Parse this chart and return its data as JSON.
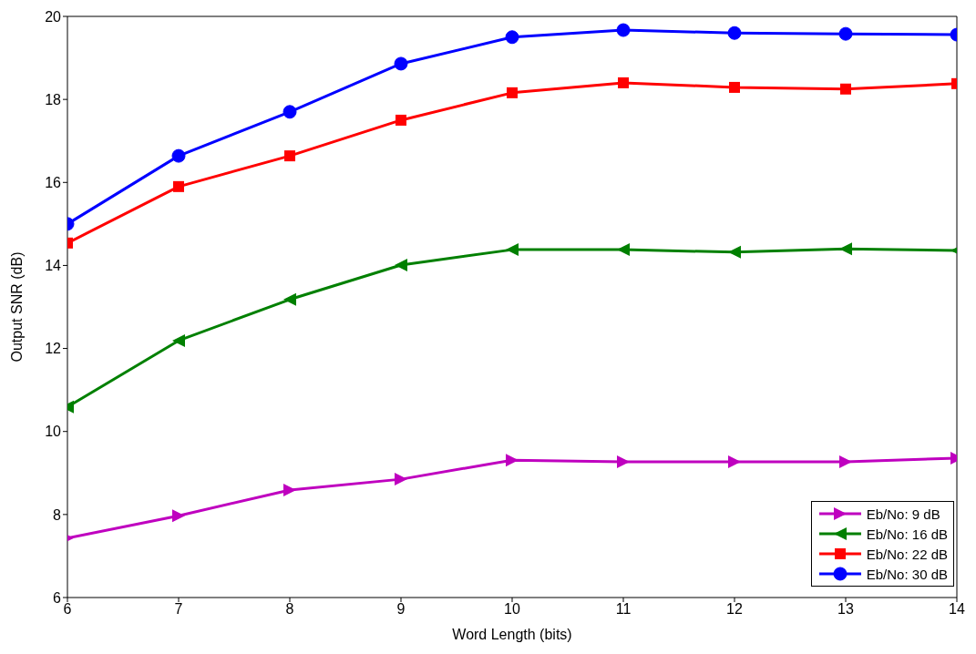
{
  "chart_data": {
    "type": "line",
    "xlabel": "Word Length (bits)",
    "ylabel": "Output SNR (dB)",
    "x": [
      6,
      7,
      8,
      9,
      10,
      11,
      12,
      13,
      14
    ],
    "xlim": [
      6,
      14
    ],
    "xticks": [
      6,
      7,
      8,
      9,
      10,
      11,
      12,
      13,
      14
    ],
    "ylim": [
      6,
      20
    ],
    "yticks": [
      6,
      8,
      10,
      12,
      14,
      16,
      18,
      20
    ],
    "grid": false,
    "legend": "bottom right",
    "line_style": "solid",
    "series": [
      {
        "name": "Eb/No: 9 dB",
        "color": "#bf00bf",
        "marker": "triangle-right",
        "values": [
          7.43,
          7.97,
          8.59,
          8.85,
          9.31,
          9.27,
          9.27,
          9.27,
          9.36
        ]
      },
      {
        "name": "Eb/No: 16 dB",
        "color": "#008000",
        "marker": "triangle-left",
        "values": [
          10.59,
          12.19,
          13.18,
          14.01,
          14.38,
          14.38,
          14.32,
          14.4,
          14.36
        ]
      },
      {
        "name": "Eb/No: 22 dB",
        "color": "#ff0000",
        "marker": "square",
        "values": [
          14.54,
          15.9,
          16.64,
          17.5,
          18.16,
          18.4,
          18.29,
          18.25,
          18.38
        ]
      },
      {
        "name": "Eb/No: 30 dB",
        "color": "#0000ff",
        "marker": "circle",
        "values": [
          15.0,
          16.64,
          17.7,
          18.86,
          19.5,
          19.67,
          19.6,
          19.58,
          19.56
        ]
      }
    ]
  }
}
